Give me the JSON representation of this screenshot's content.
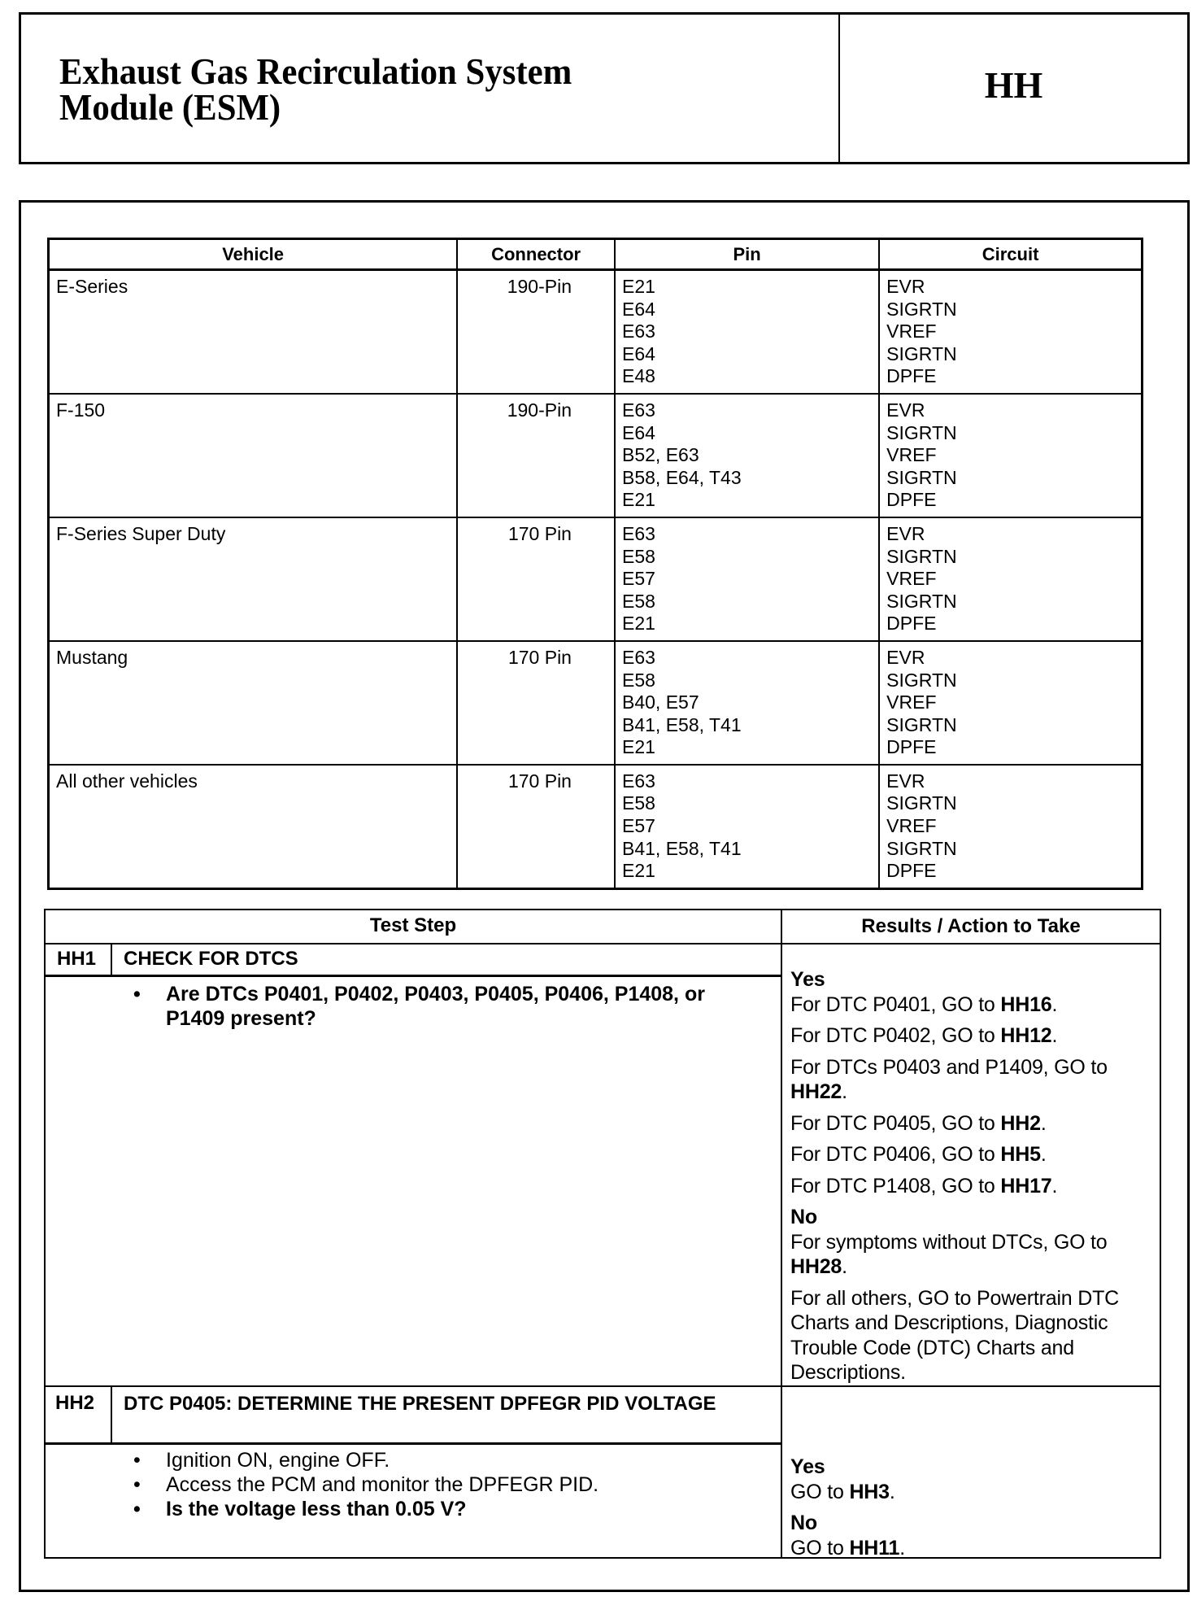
{
  "header": {
    "title_line1": "Exhaust Gas Recirculation System",
    "title_line2": "Module (ESM)",
    "section_code": "HH"
  },
  "pin_table": {
    "columns": [
      "Vehicle",
      "Connector",
      "Pin",
      "Circuit"
    ],
    "rows": [
      {
        "vehicle": "E-Series",
        "connector": "190-Pin",
        "pins": [
          "E21",
          "E64",
          "E63",
          "E64",
          "E48"
        ],
        "circuits": [
          "EVR",
          "SIGRTN",
          "VREF",
          "SIGRTN",
          "DPFE"
        ]
      },
      {
        "vehicle": "F-150",
        "connector": "190-Pin",
        "pins": [
          "E63",
          "E64",
          "B52, E63",
          "B58, E64, T43",
          "E21"
        ],
        "circuits": [
          "EVR",
          "SIGRTN",
          "VREF",
          "SIGRTN",
          "DPFE"
        ]
      },
      {
        "vehicle": "F-Series Super Duty",
        "connector": "170 Pin",
        "pins": [
          "E63",
          "E58",
          "E57",
          "E58",
          "E21"
        ],
        "circuits": [
          "EVR",
          "SIGRTN",
          "VREF",
          "SIGRTN",
          "DPFE"
        ]
      },
      {
        "vehicle": "Mustang",
        "connector": "170 Pin",
        "pins": [
          "E63",
          "E58",
          "B40, E57",
          "B41, E58, T41",
          "E21"
        ],
        "circuits": [
          "EVR",
          "SIGRTN",
          "VREF",
          "SIGRTN",
          "DPFE"
        ]
      },
      {
        "vehicle": "All other vehicles",
        "connector": "170 Pin",
        "pins": [
          "E63",
          "E58",
          "E57",
          "B41, E58, T41",
          "E21"
        ],
        "circuits": [
          "EVR",
          "SIGRTN",
          "VREF",
          "SIGRTN",
          "DPFE"
        ]
      }
    ]
  },
  "test_table": {
    "col_step": "Test Step",
    "col_results": "Results / Action to Take",
    "hh1": {
      "id": "HH1",
      "title": "CHECK FOR  DTCS",
      "bullet": "Are DTCs P0401, P0402, P0403, P0405, P0406, P1408, or P1409 present?",
      "yes_label": "Yes",
      "yes": [
        [
          "For DTC P0401, GO to ",
          "HH16",
          "."
        ],
        [
          "For DTC P0402, GO to ",
          "HH12",
          "."
        ],
        [
          "For DTCs P0403 and P1409, GO to ",
          "HH22",
          "."
        ],
        [
          "For DTC P0405, GO to ",
          "HH2",
          "."
        ],
        [
          "For DTC P0406, GO to ",
          "HH5",
          "."
        ],
        [
          "For DTC P1408, GO to ",
          "HH17",
          "."
        ]
      ],
      "no_label": "No",
      "no": [
        [
          "For symptoms without DTCs, GO to ",
          "HH28",
          "."
        ]
      ],
      "others": "For all others, GO to Powertrain DTC Charts and Descriptions, Diagnostic Trouble Code (DTC) Charts and Descriptions."
    },
    "hh2": {
      "id": "HH2",
      "title": "DTC P0405: DETERMINE THE PRESENT DPFEGR PID VOLTAGE",
      "bullets": [
        "Ignition ON, engine OFF.",
        "Access the PCM and monitor the DPFEGR PID."
      ],
      "question": "Is the voltage less than 0.05 V?",
      "yes_label": "Yes",
      "yes": [
        "GO to ",
        "HH3",
        "."
      ],
      "no_label": "No",
      "no": [
        "GO to ",
        "HH11",
        "."
      ]
    }
  }
}
